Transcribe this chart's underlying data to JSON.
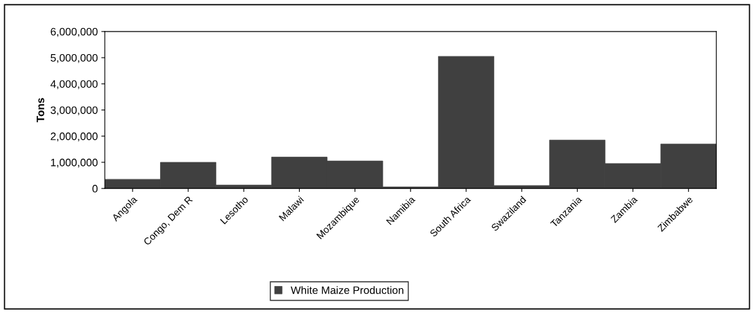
{
  "chart_data": {
    "type": "bar",
    "categories": [
      "Angola",
      "Congo, Dem R",
      "Lesotho",
      "Malawi",
      "Mozambique",
      "Namibia",
      "South Africa",
      "Swaziland",
      "Tanzania",
      "Zambia",
      "Zimbabwe"
    ],
    "series": [
      {
        "name": "White Maize Production",
        "color": "#404040",
        "values": [
          350000,
          1000000,
          130000,
          1200000,
          1050000,
          60000,
          5050000,
          110000,
          1850000,
          950000,
          1700000
        ]
      }
    ],
    "ylabel": "Tons",
    "ylim": [
      0,
      6000000
    ],
    "yticks": [
      {
        "value": 0,
        "label": "0"
      },
      {
        "value": 1000000,
        "label": "1,000,000"
      },
      {
        "value": 2000000,
        "label": "2,000,000"
      },
      {
        "value": 3000000,
        "label": "3,000,000"
      },
      {
        "value": 4000000,
        "label": "4,000,000"
      },
      {
        "value": 5000000,
        "label": "5,000,000"
      },
      {
        "value": 6000000,
        "label": "6,000,000"
      }
    ],
    "grid": false,
    "legend": "bottom"
  }
}
